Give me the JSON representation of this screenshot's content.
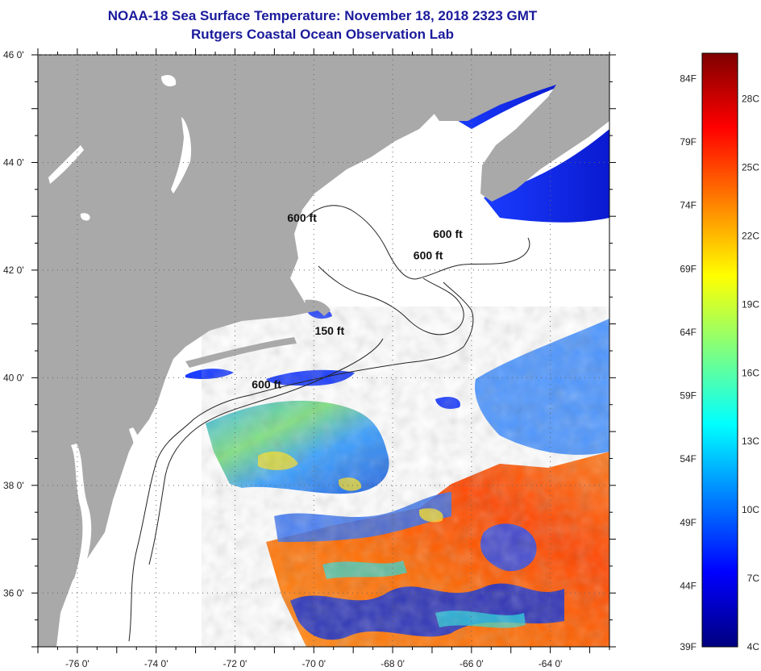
{
  "title": {
    "line1": "NOAA-18 Sea Surface Temperature:  November 18, 2018 2323 GMT",
    "line2": "Rutgers Coastal Ocean Observation Lab"
  },
  "map": {
    "lon_range": [
      -77,
      -62.5
    ],
    "lat_range": [
      35,
      46
    ],
    "lat_ticks": [
      {
        "value": 46,
        "label": "46 0'"
      },
      {
        "value": 44,
        "label": "44 0'"
      },
      {
        "value": 42,
        "label": "42 0'"
      },
      {
        "value": 40,
        "label": "40 0'"
      },
      {
        "value": 38,
        "label": "38 0'"
      },
      {
        "value": 36,
        "label": "36 0'"
      }
    ],
    "lon_ticks": [
      {
        "value": -76,
        "label": "-76 0'"
      },
      {
        "value": -74,
        "label": "-74 0'"
      },
      {
        "value": -72,
        "label": "-72 0'"
      },
      {
        "value": -70,
        "label": "-70 0'"
      },
      {
        "value": -68,
        "label": "-68 0'"
      },
      {
        "value": -66,
        "label": "-66 0'"
      },
      {
        "value": -64,
        "label": "-64 0'"
      }
    ],
    "contour_labels": [
      {
        "text": "600 ft",
        "lon": -70.3,
        "lat": 42.9
      },
      {
        "text": "600 ft",
        "lon": -66.6,
        "lat": 42.6
      },
      {
        "text": "600 ft",
        "lon": -67.1,
        "lat": 42.2
      },
      {
        "text": "150 ft",
        "lon": -69.6,
        "lat": 40.8
      },
      {
        "text": "600 ft",
        "lon": -71.2,
        "lat": 39.8
      }
    ],
    "colors": {
      "land": "#a9a9a9",
      "ocean_nodata": "#ffffff",
      "grid": "#666666"
    }
  },
  "colorbar": {
    "min_c": 4,
    "max_c": 30,
    "fahrenheit_labels": [
      "84F",
      "79F",
      "74F",
      "69F",
      "64F",
      "59F",
      "54F",
      "49F",
      "44F",
      "39F"
    ],
    "fahrenheit_values": [
      84,
      79,
      74,
      69,
      64,
      59,
      54,
      49,
      44,
      39
    ],
    "celsius_labels": [
      "28C",
      "25C",
      "22C",
      "19C",
      "16C",
      "13C",
      "10C",
      "7C",
      "4C"
    ],
    "celsius_values": [
      28,
      25,
      22,
      19,
      16,
      13,
      10,
      7,
      4
    ],
    "stops": [
      "#00007f",
      "#0000ff",
      "#007fff",
      "#00ffff",
      "#7fff7f",
      "#ffff00",
      "#ff7f00",
      "#ff0000",
      "#7f0000"
    ]
  }
}
